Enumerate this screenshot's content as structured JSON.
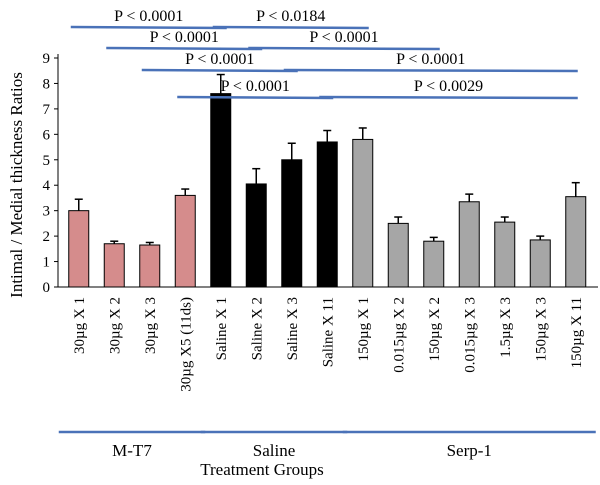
{
  "chart_data": {
    "type": "bar",
    "ylabel": "Intimal / Medial thickness Ratios",
    "xlabel": "Treatment Groups",
    "ylim": [
      0,
      9
    ],
    "yticks": [
      0,
      1,
      2,
      3,
      4,
      5,
      6,
      7,
      8,
      9
    ],
    "grid": false,
    "categories": [
      "30µg X 1",
      "30µg X 2",
      "30µg X 3",
      "30µg X5 (11ds)",
      "Saline X 1",
      "Saline X 2",
      "Saline X 3",
      "Saline X 11",
      "150µg X 1",
      "0.015µg X 2",
      "150µg X 2",
      "0.015µg X 3",
      "1.5µg X 3",
      "150µg X 3",
      "150µg X 11"
    ],
    "values": [
      3.0,
      1.7,
      1.65,
      3.6,
      7.6,
      4.05,
      5.0,
      5.7,
      5.8,
      2.5,
      1.8,
      3.35,
      2.55,
      1.85,
      3.55
    ],
    "errors": [
      0.45,
      0.1,
      0.1,
      0.25,
      0.75,
      0.6,
      0.65,
      0.45,
      0.45,
      0.25,
      0.15,
      0.3,
      0.2,
      0.15,
      0.55
    ],
    "bar_colors": [
      "#d58c8c",
      "#d58c8c",
      "#d58c8c",
      "#d58c8c",
      "#000000",
      "#000000",
      "#000000",
      "#000000",
      "#a6a6a6",
      "#a6a6a6",
      "#a6a6a6",
      "#a6a6a6",
      "#a6a6a6",
      "#a6a6a6",
      "#a6a6a6"
    ],
    "groups": [
      {
        "label": "M-T7",
        "from": 0,
        "to": 3
      },
      {
        "label": "Saline",
        "from": 4,
        "to": 7
      },
      {
        "label": "Serp-1",
        "from": 8,
        "to": 14
      }
    ],
    "annotations": [
      {
        "text": "P < 0.0001",
        "from": 0,
        "to": 4
      },
      {
        "text": "P < 0.0184",
        "from": 4,
        "to": 8
      },
      {
        "text": "P < 0.0001",
        "from": 1,
        "to": 5
      },
      {
        "text": "P < 0.0001",
        "from": 5,
        "to": 10
      },
      {
        "text": "P < 0.0001",
        "from": 2,
        "to": 6
      },
      {
        "text": "P < 0.0001",
        "from": 6,
        "to": 14
      },
      {
        "text": "P < 0.0001",
        "from": 3,
        "to": 7
      },
      {
        "text": "P < 0.0029",
        "from": 7,
        "to": 14
      }
    ],
    "annotation_color": "#4a72b8",
    "group_line_color": "#4a72b8"
  }
}
